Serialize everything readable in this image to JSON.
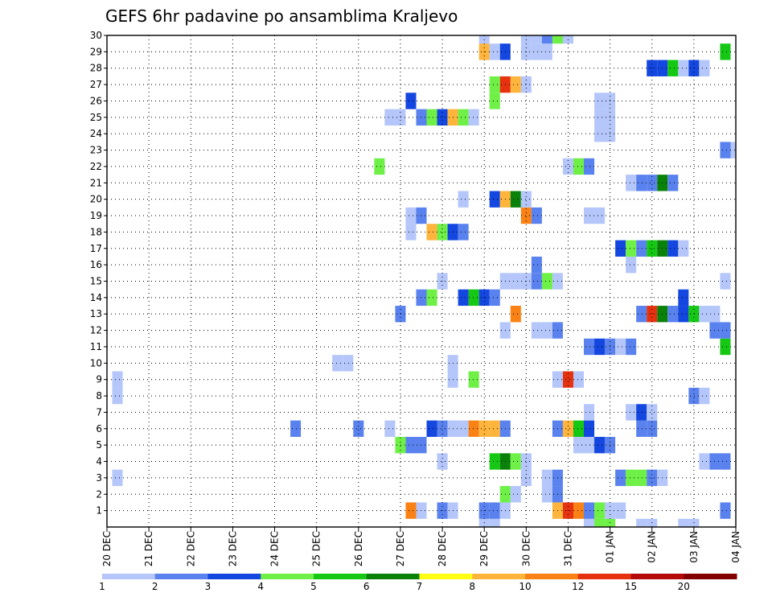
{
  "chart_data": {
    "type": "heatmap",
    "title": "GEFS 6hr padavine po ansamblima Kraljevo",
    "xlabel": "",
    "ylabel": "",
    "x_ticks": [
      "20 DEC",
      "21 DEC",
      "22 DEC",
      "23 DEC",
      "24 DEC",
      "25 DEC",
      "26 DEC",
      "27 DEC",
      "28 DEC",
      "29 DEC",
      "30 DEC",
      "31 DEC",
      "01 JAN",
      "02 JAN",
      "03 JAN",
      "04 JAN"
    ],
    "y_ticks": [
      "1",
      "2",
      "3",
      "4",
      "5",
      "6",
      "7",
      "8",
      "9",
      "10",
      "11",
      "12",
      "13",
      "14",
      "15",
      "16",
      "17",
      "18",
      "19",
      "20",
      "21",
      "22",
      "23",
      "24",
      "25",
      "26",
      "27",
      "28",
      "29",
      "30"
    ],
    "xlim": [
      0,
      60
    ],
    "ylim": [
      0,
      30
    ],
    "grid": true,
    "colorbar": {
      "labels": [
        "1",
        "2",
        "3",
        "4",
        "5",
        "6",
        "7",
        "8",
        "10",
        "12",
        "15",
        "20"
      ],
      "colors": [
        "#b4c6fa",
        "#5a82ee",
        "#1446e0",
        "#6ef046",
        "#14c814",
        "#0a820a",
        "#ffff14",
        "#ffb43c",
        "#fa8214",
        "#e6320f",
        "#b40a0a",
        "#820000"
      ]
    },
    "cells": [
      [
        36,
        0,
        1
      ],
      [
        37,
        0,
        1
      ],
      [
        46,
        0,
        1
      ],
      [
        47,
        0,
        4
      ],
      [
        48,
        0,
        4
      ],
      [
        51,
        0,
        1
      ],
      [
        52,
        0,
        1
      ],
      [
        55,
        0,
        1
      ],
      [
        56,
        0,
        1
      ],
      [
        29,
        1,
        9
      ],
      [
        30,
        1,
        1
      ],
      [
        32,
        1,
        2
      ],
      [
        33,
        1,
        1
      ],
      [
        36,
        1,
        2
      ],
      [
        37,
        1,
        2
      ],
      [
        38,
        1,
        1
      ],
      [
        43,
        1,
        8
      ],
      [
        44,
        1,
        10
      ],
      [
        45,
        1,
        9
      ],
      [
        46,
        1,
        2
      ],
      [
        47,
        1,
        4
      ],
      [
        48,
        1,
        1
      ],
      [
        49,
        1,
        1
      ],
      [
        59,
        1,
        2
      ],
      [
        38,
        2,
        4
      ],
      [
        39,
        2,
        1
      ],
      [
        42,
        2,
        1
      ],
      [
        43,
        2,
        2
      ],
      [
        1,
        3,
        1
      ],
      [
        40,
        3,
        1
      ],
      [
        42,
        3,
        1
      ],
      [
        43,
        3,
        2
      ],
      [
        49,
        3,
        2
      ],
      [
        50,
        3,
        4
      ],
      [
        51,
        3,
        4
      ],
      [
        52,
        3,
        2
      ],
      [
        53,
        3,
        1
      ],
      [
        32,
        4,
        1
      ],
      [
        37,
        4,
        5
      ],
      [
        38,
        4,
        6
      ],
      [
        39,
        4,
        4
      ],
      [
        40,
        4,
        1
      ],
      [
        57,
        4,
        1
      ],
      [
        58,
        4,
        2
      ],
      [
        59,
        4,
        2
      ],
      [
        28,
        5,
        4
      ],
      [
        29,
        5,
        2
      ],
      [
        30,
        5,
        2
      ],
      [
        45,
        5,
        1
      ],
      [
        46,
        5,
        1
      ],
      [
        47,
        5,
        3
      ],
      [
        48,
        5,
        2
      ],
      [
        18,
        6,
        2
      ],
      [
        24,
        6,
        2
      ],
      [
        27,
        6,
        1
      ],
      [
        31,
        6,
        3
      ],
      [
        32,
        6,
        2
      ],
      [
        33,
        6,
        1
      ],
      [
        34,
        6,
        1
      ],
      [
        35,
        6,
        9
      ],
      [
        36,
        6,
        8
      ],
      [
        37,
        6,
        8
      ],
      [
        38,
        6,
        2
      ],
      [
        43,
        6,
        2
      ],
      [
        44,
        6,
        8
      ],
      [
        45,
        6,
        5
      ],
      [
        46,
        6,
        3
      ],
      [
        51,
        6,
        2
      ],
      [
        52,
        6,
        2
      ],
      [
        46,
        7,
        1
      ],
      [
        50,
        7,
        1
      ],
      [
        51,
        7,
        3
      ],
      [
        52,
        7,
        1
      ],
      [
        1,
        8,
        1
      ],
      [
        56,
        8,
        2
      ],
      [
        57,
        8,
        1
      ],
      [
        1,
        9,
        1
      ],
      [
        33,
        9,
        1
      ],
      [
        35,
        9,
        4
      ],
      [
        43,
        9,
        1
      ],
      [
        44,
        9,
        10
      ],
      [
        45,
        9,
        1
      ],
      [
        22,
        10,
        1
      ],
      [
        23,
        10,
        1
      ],
      [
        33,
        10,
        1
      ],
      [
        46,
        11,
        2
      ],
      [
        47,
        11,
        3
      ],
      [
        48,
        11,
        2
      ],
      [
        49,
        11,
        1
      ],
      [
        50,
        11,
        2
      ],
      [
        59,
        11,
        5
      ],
      [
        38,
        12,
        1
      ],
      [
        41,
        12,
        1
      ],
      [
        42,
        12,
        1
      ],
      [
        43,
        12,
        2
      ],
      [
        58,
        12,
        2
      ],
      [
        59,
        12,
        2
      ],
      [
        28,
        13,
        2
      ],
      [
        39,
        13,
        9
      ],
      [
        51,
        13,
        2
      ],
      [
        52,
        13,
        10
      ],
      [
        53,
        13,
        6
      ],
      [
        54,
        13,
        2
      ],
      [
        55,
        13,
        3
      ],
      [
        56,
        13,
        5
      ],
      [
        57,
        13,
        1
      ],
      [
        58,
        13,
        1
      ],
      [
        30,
        14,
        2
      ],
      [
        31,
        14,
        4
      ],
      [
        34,
        14,
        3
      ],
      [
        35,
        14,
        5
      ],
      [
        36,
        14,
        3
      ],
      [
        37,
        14,
        2
      ],
      [
        55,
        14,
        3
      ],
      [
        32,
        15,
        1
      ],
      [
        38,
        15,
        1
      ],
      [
        39,
        15,
        1
      ],
      [
        40,
        15,
        1
      ],
      [
        41,
        15,
        2
      ],
      [
        42,
        15,
        4
      ],
      [
        43,
        15,
        1
      ],
      [
        59,
        15,
        1
      ],
      [
        41,
        16,
        2
      ],
      [
        50,
        16,
        1
      ],
      [
        49,
        17,
        3
      ],
      [
        50,
        17,
        4
      ],
      [
        51,
        17,
        2
      ],
      [
        52,
        17,
        5
      ],
      [
        53,
        17,
        6
      ],
      [
        54,
        17,
        3
      ],
      [
        55,
        17,
        1
      ],
      [
        29,
        18,
        1
      ],
      [
        31,
        18,
        8
      ],
      [
        32,
        18,
        4
      ],
      [
        33,
        18,
        3
      ],
      [
        34,
        18,
        2
      ],
      [
        29,
        19,
        1
      ],
      [
        30,
        19,
        2
      ],
      [
        40,
        19,
        9
      ],
      [
        41,
        19,
        2
      ],
      [
        46,
        19,
        1
      ],
      [
        47,
        19,
        1
      ],
      [
        34,
        20,
        1
      ],
      [
        37,
        20,
        3
      ],
      [
        38,
        20,
        8
      ],
      [
        39,
        20,
        6
      ],
      [
        40,
        20,
        1
      ],
      [
        50,
        21,
        1
      ],
      [
        51,
        21,
        2
      ],
      [
        52,
        21,
        2
      ],
      [
        53,
        21,
        6
      ],
      [
        54,
        21,
        2
      ],
      [
        26,
        22,
        4
      ],
      [
        44,
        22,
        1
      ],
      [
        45,
        22,
        4
      ],
      [
        46,
        22,
        2
      ],
      [
        59,
        23,
        2
      ],
      [
        60,
        23,
        1
      ],
      [
        47,
        24,
        1
      ],
      [
        48,
        24,
        1
      ],
      [
        27,
        25,
        1
      ],
      [
        28,
        25,
        1
      ],
      [
        30,
        25,
        2
      ],
      [
        31,
        25,
        4
      ],
      [
        32,
        25,
        3
      ],
      [
        33,
        25,
        8
      ],
      [
        34,
        25,
        4
      ],
      [
        35,
        25,
        1
      ],
      [
        47,
        25,
        1
      ],
      [
        48,
        25,
        1
      ],
      [
        29,
        26,
        3
      ],
      [
        37,
        26,
        4
      ],
      [
        47,
        26,
        1
      ],
      [
        48,
        26,
        1
      ],
      [
        37,
        27,
        4
      ],
      [
        38,
        27,
        10
      ],
      [
        39,
        27,
        8
      ],
      [
        40,
        27,
        1
      ],
      [
        52,
        28,
        3
      ],
      [
        53,
        28,
        3
      ],
      [
        54,
        28,
        5
      ],
      [
        55,
        28,
        1
      ],
      [
        56,
        28,
        3
      ],
      [
        57,
        28,
        1
      ],
      [
        36,
        29,
        8
      ],
      [
        37,
        29,
        1
      ],
      [
        38,
        29,
        3
      ],
      [
        40,
        29,
        1
      ],
      [
        41,
        29,
        1
      ],
      [
        42,
        29,
        1
      ],
      [
        59,
        29,
        5
      ],
      [
        36,
        30,
        1
      ],
      [
        40,
        30,
        1
      ],
      [
        41,
        30,
        1
      ],
      [
        42,
        30,
        2
      ],
      [
        43,
        30,
        4
      ],
      [
        44,
        30,
        1
      ]
    ]
  }
}
